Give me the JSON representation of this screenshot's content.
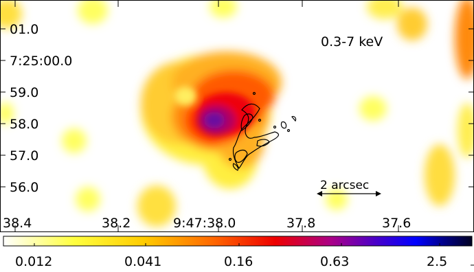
{
  "image": {
    "energy_band": "0.3-7 keV",
    "scale_bar_label": "2 arcsec",
    "dec_labels": [
      "01.0",
      "7:25:00.0",
      "59.0",
      "58.0",
      "57.0",
      "56.0"
    ],
    "ra_labels": [
      "38.4",
      "38.2",
      "9:47:38.0",
      "37.8",
      "37.6"
    ],
    "colorbar_labels": [
      "0.012",
      "0.041",
      "0.16",
      "0.63",
      "2.5"
    ],
    "colormap": [
      "#ffffff",
      "#ffff00",
      "#ff9900",
      "#ff2200",
      "#9900aa",
      "#0000ff",
      "#000033"
    ]
  }
}
